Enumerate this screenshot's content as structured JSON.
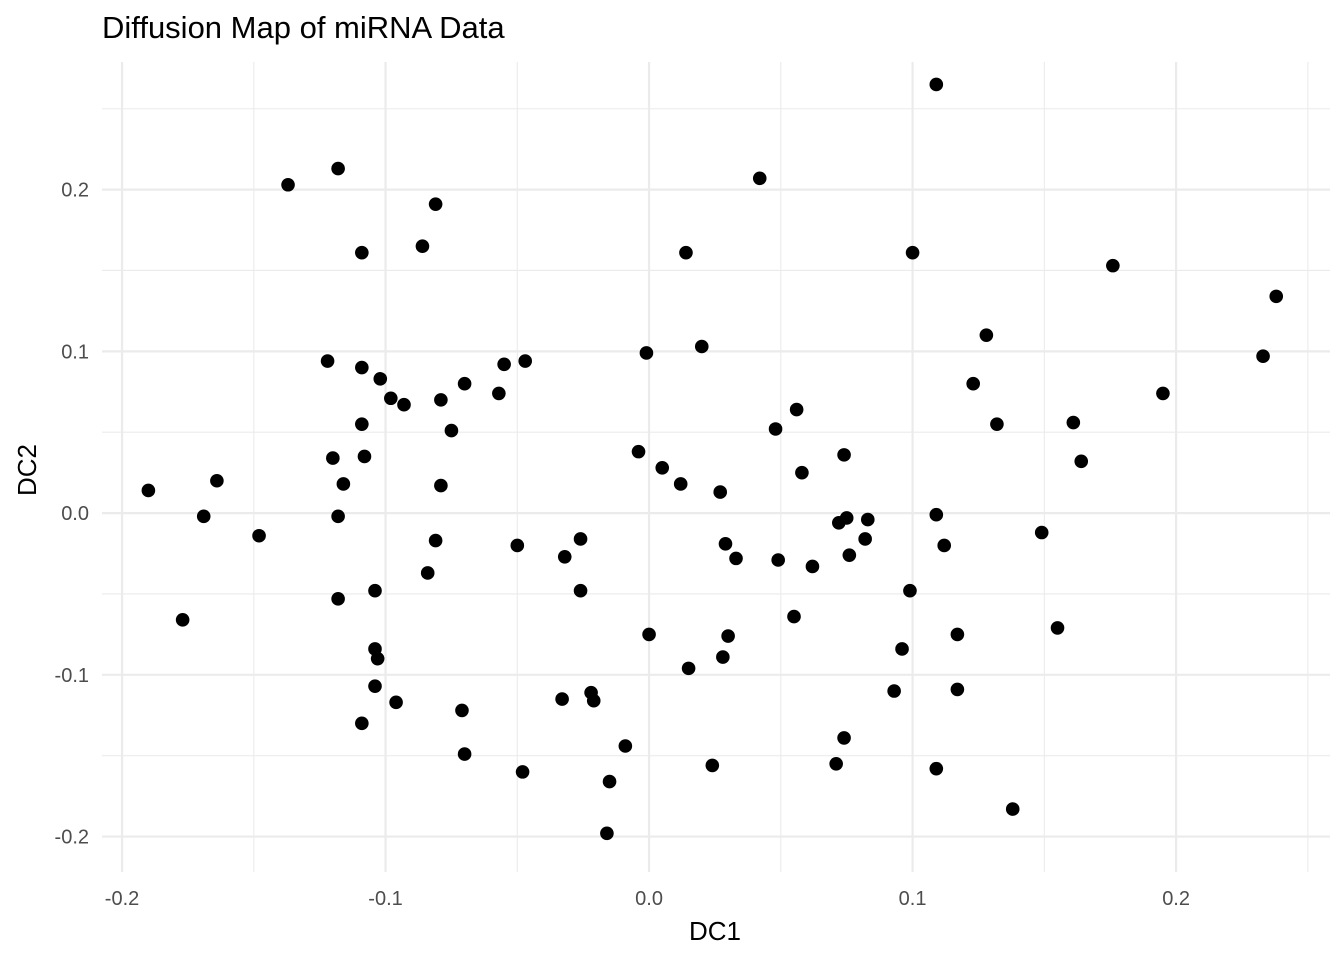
{
  "chart_data": {
    "type": "scatter",
    "title": "Diffusion Map of miRNA Data",
    "xlabel": "DC1",
    "ylabel": "DC2",
    "xlim": [
      -0.2076,
      0.2584
    ],
    "ylim": [
      -0.2219,
      0.2789
    ],
    "x_ticks": [
      -0.2,
      -0.1,
      0.0,
      0.1,
      0.2
    ],
    "x_tick_labels": [
      "-0.2",
      "-0.1",
      "0.0",
      "0.1",
      "0.2"
    ],
    "x_minor": [
      -0.15,
      -0.05,
      0.05,
      0.15,
      0.25
    ],
    "y_ticks": [
      -0.2,
      -0.1,
      0.0,
      0.1,
      0.2
    ],
    "y_tick_labels": [
      "-0.2",
      "-0.1",
      "0.0",
      "0.1",
      "0.2"
    ],
    "y_minor": [
      -0.15,
      -0.05,
      0.05,
      0.15,
      0.25
    ],
    "grid": true,
    "legend": "none",
    "point_color": "#000000",
    "points": [
      {
        "x": -0.19,
        "y": 0.014
      },
      {
        "x": -0.177,
        "y": -0.066
      },
      {
        "x": -0.169,
        "y": -0.002
      },
      {
        "x": -0.164,
        "y": 0.02
      },
      {
        "x": -0.148,
        "y": -0.014
      },
      {
        "x": -0.137,
        "y": 0.203
      },
      {
        "x": -0.122,
        "y": 0.094
      },
      {
        "x": -0.12,
        "y": 0.034
      },
      {
        "x": -0.118,
        "y": 0.213
      },
      {
        "x": -0.118,
        "y": -0.053
      },
      {
        "x": -0.118,
        "y": -0.002
      },
      {
        "x": -0.116,
        "y": 0.018
      },
      {
        "x": -0.109,
        "y": 0.161
      },
      {
        "x": -0.109,
        "y": 0.09
      },
      {
        "x": -0.109,
        "y": 0.055
      },
      {
        "x": -0.108,
        "y": 0.035
      },
      {
        "x": -0.109,
        "y": -0.13
      },
      {
        "x": -0.104,
        "y": -0.084
      },
      {
        "x": -0.104,
        "y": -0.048
      },
      {
        "x": -0.104,
        "y": -0.107
      },
      {
        "x": -0.103,
        "y": -0.09
      },
      {
        "x": -0.102,
        "y": 0.083
      },
      {
        "x": -0.098,
        "y": 0.071
      },
      {
        "x": -0.096,
        "y": -0.117
      },
      {
        "x": -0.093,
        "y": 0.067
      },
      {
        "x": -0.086,
        "y": 0.165
      },
      {
        "x": -0.084,
        "y": -0.037
      },
      {
        "x": -0.081,
        "y": 0.191
      },
      {
        "x": -0.081,
        "y": -0.017
      },
      {
        "x": -0.079,
        "y": 0.07
      },
      {
        "x": -0.079,
        "y": 0.017
      },
      {
        "x": -0.075,
        "y": 0.051
      },
      {
        "x": -0.071,
        "y": -0.122
      },
      {
        "x": -0.07,
        "y": 0.08
      },
      {
        "x": -0.07,
        "y": -0.149
      },
      {
        "x": -0.057,
        "y": 0.074
      },
      {
        "x": -0.055,
        "y": 0.092
      },
      {
        "x": -0.05,
        "y": -0.02
      },
      {
        "x": -0.048,
        "y": -0.16
      },
      {
        "x": -0.047,
        "y": 0.094
      },
      {
        "x": -0.033,
        "y": -0.115
      },
      {
        "x": -0.032,
        "y": -0.027
      },
      {
        "x": -0.026,
        "y": -0.016
      },
      {
        "x": -0.026,
        "y": -0.048
      },
      {
        "x": -0.022,
        "y": -0.111
      },
      {
        "x": -0.021,
        "y": -0.116
      },
      {
        "x": -0.016,
        "y": -0.198
      },
      {
        "x": -0.015,
        "y": -0.166
      },
      {
        "x": -0.009,
        "y": -0.144
      },
      {
        "x": -0.004,
        "y": 0.038
      },
      {
        "x": -0.001,
        "y": 0.099
      },
      {
        "x": 0.0,
        "y": -0.075
      },
      {
        "x": 0.005,
        "y": 0.028
      },
      {
        "x": 0.012,
        "y": 0.018
      },
      {
        "x": 0.014,
        "y": 0.161
      },
      {
        "x": 0.015,
        "y": -0.096
      },
      {
        "x": 0.02,
        "y": 0.103
      },
      {
        "x": 0.024,
        "y": -0.156
      },
      {
        "x": 0.027,
        "y": 0.013
      },
      {
        "x": 0.028,
        "y": -0.089
      },
      {
        "x": 0.029,
        "y": -0.019
      },
      {
        "x": 0.03,
        "y": -0.076
      },
      {
        "x": 0.033,
        "y": -0.028
      },
      {
        "x": 0.042,
        "y": 0.207
      },
      {
        "x": 0.048,
        "y": 0.052
      },
      {
        "x": 0.049,
        "y": -0.029
      },
      {
        "x": 0.055,
        "y": -0.064
      },
      {
        "x": 0.056,
        "y": 0.064
      },
      {
        "x": 0.058,
        "y": 0.025
      },
      {
        "x": 0.062,
        "y": -0.033
      },
      {
        "x": 0.071,
        "y": -0.155
      },
      {
        "x": 0.072,
        "y": -0.006
      },
      {
        "x": 0.074,
        "y": 0.036
      },
      {
        "x": 0.074,
        "y": -0.139
      },
      {
        "x": 0.075,
        "y": -0.003
      },
      {
        "x": 0.076,
        "y": -0.026
      },
      {
        "x": 0.082,
        "y": -0.016
      },
      {
        "x": 0.083,
        "y": -0.004
      },
      {
        "x": 0.093,
        "y": -0.11
      },
      {
        "x": 0.096,
        "y": -0.084
      },
      {
        "x": 0.099,
        "y": -0.048
      },
      {
        "x": 0.1,
        "y": 0.161
      },
      {
        "x": 0.109,
        "y": -0.001
      },
      {
        "x": 0.109,
        "y": 0.265
      },
      {
        "x": 0.109,
        "y": -0.158
      },
      {
        "x": 0.112,
        "y": -0.02
      },
      {
        "x": 0.117,
        "y": -0.109
      },
      {
        "x": 0.117,
        "y": -0.075
      },
      {
        "x": 0.123,
        "y": 0.08
      },
      {
        "x": 0.128,
        "y": 0.11
      },
      {
        "x": 0.132,
        "y": 0.055
      },
      {
        "x": 0.138,
        "y": -0.183
      },
      {
        "x": 0.149,
        "y": -0.012
      },
      {
        "x": 0.155,
        "y": -0.071
      },
      {
        "x": 0.161,
        "y": 0.056
      },
      {
        "x": 0.164,
        "y": 0.032
      },
      {
        "x": 0.176,
        "y": 0.153
      },
      {
        "x": 0.195,
        "y": 0.074
      },
      {
        "x": 0.233,
        "y": 0.097
      },
      {
        "x": 0.238,
        "y": 0.134
      }
    ]
  }
}
